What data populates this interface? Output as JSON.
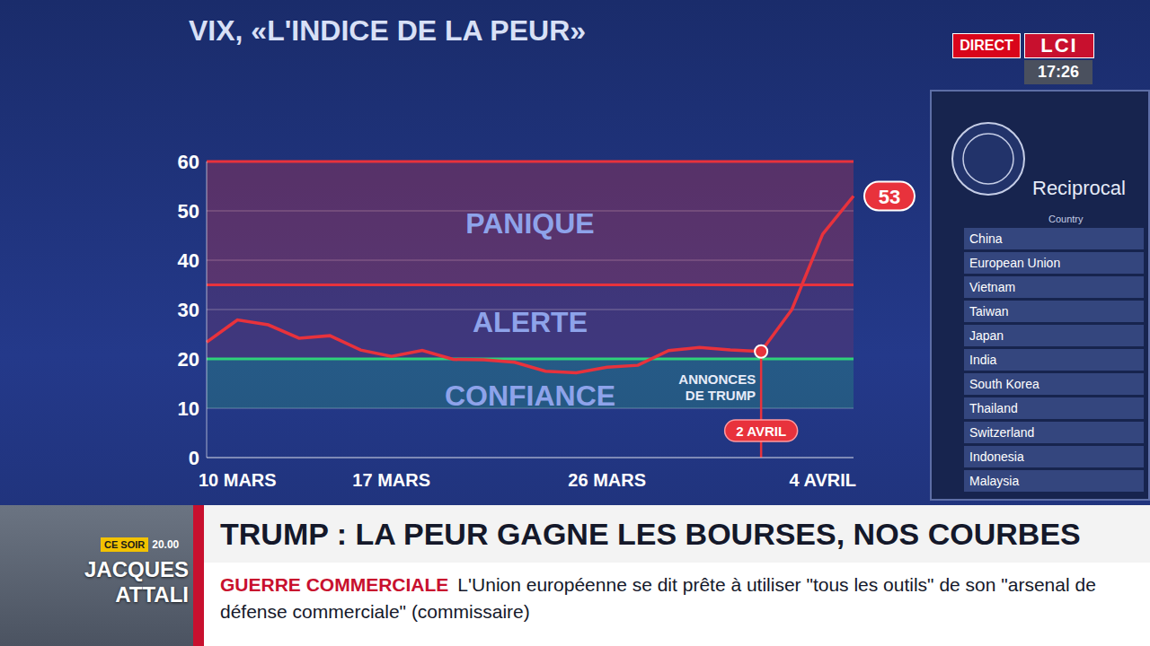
{
  "screen": {
    "live": "DIRECT",
    "channel": "LCI",
    "time": "17:26"
  },
  "chart_data": {
    "type": "line",
    "title": "VIX, «L'INDICE DE LA PEUR»",
    "categories": [
      null,
      "10 MARS",
      null,
      null,
      null,
      null,
      "17 MARS",
      null,
      null,
      null,
      null,
      null,
      null,
      "26 MARS",
      null,
      null,
      null,
      null,
      null,
      null,
      "4 AVRIL",
      null
    ],
    "values": [
      23.4,
      27.9,
      26.9,
      24.2,
      24.7,
      21.8,
      20.5,
      21.7,
      19.9,
      19.8,
      19.3,
      17.5,
      17.2,
      18.3,
      18.7,
      21.7,
      22.3,
      21.8,
      21.5,
      30.0,
      45.3,
      53
    ],
    "color": "#e8323c",
    "ylim": [
      0,
      60
    ],
    "yticks": [
      0,
      10,
      20,
      30,
      40,
      50,
      60
    ],
    "grid": true,
    "zones": [
      {
        "label": "PANIQUE",
        "from": 35,
        "to": 60,
        "color": "#e8323c"
      },
      {
        "label": "ALERTE",
        "from": 20,
        "to": 35,
        "color": "#e8323c"
      },
      {
        "label": "CONFIANCE",
        "from": 10,
        "to": 20,
        "color": "#2fd07a"
      }
    ],
    "annotations": [
      {
        "x": 18,
        "text": "ANNONCES DE TRUMP"
      },
      {
        "x": 18,
        "text": "2 AVRIL"
      },
      {
        "x": 21,
        "text": "53"
      }
    ]
  },
  "document": {
    "title": "Reciprocal",
    "column": "Country",
    "rows": [
      "China",
      "European Union",
      "Vietnam",
      "Taiwan",
      "Japan",
      "India",
      "South Korea",
      "Thailand",
      "Switzerland",
      "Indonesia",
      "Malaysia"
    ]
  },
  "guest": {
    "tag": "CE SOIR",
    "time": "20.00",
    "name": "JACQUES ATTALI"
  },
  "banner": {
    "headline": "TRUMP : LA PEUR GAGNE LES BOURSES, NOS COURBES",
    "topic": "GUERRE COMMERCIALE",
    "ticker": "L'Union européenne se dit prête à utiliser \"tous les outils\" de son \"arsenal de défense commerciale\" (commissaire)"
  }
}
